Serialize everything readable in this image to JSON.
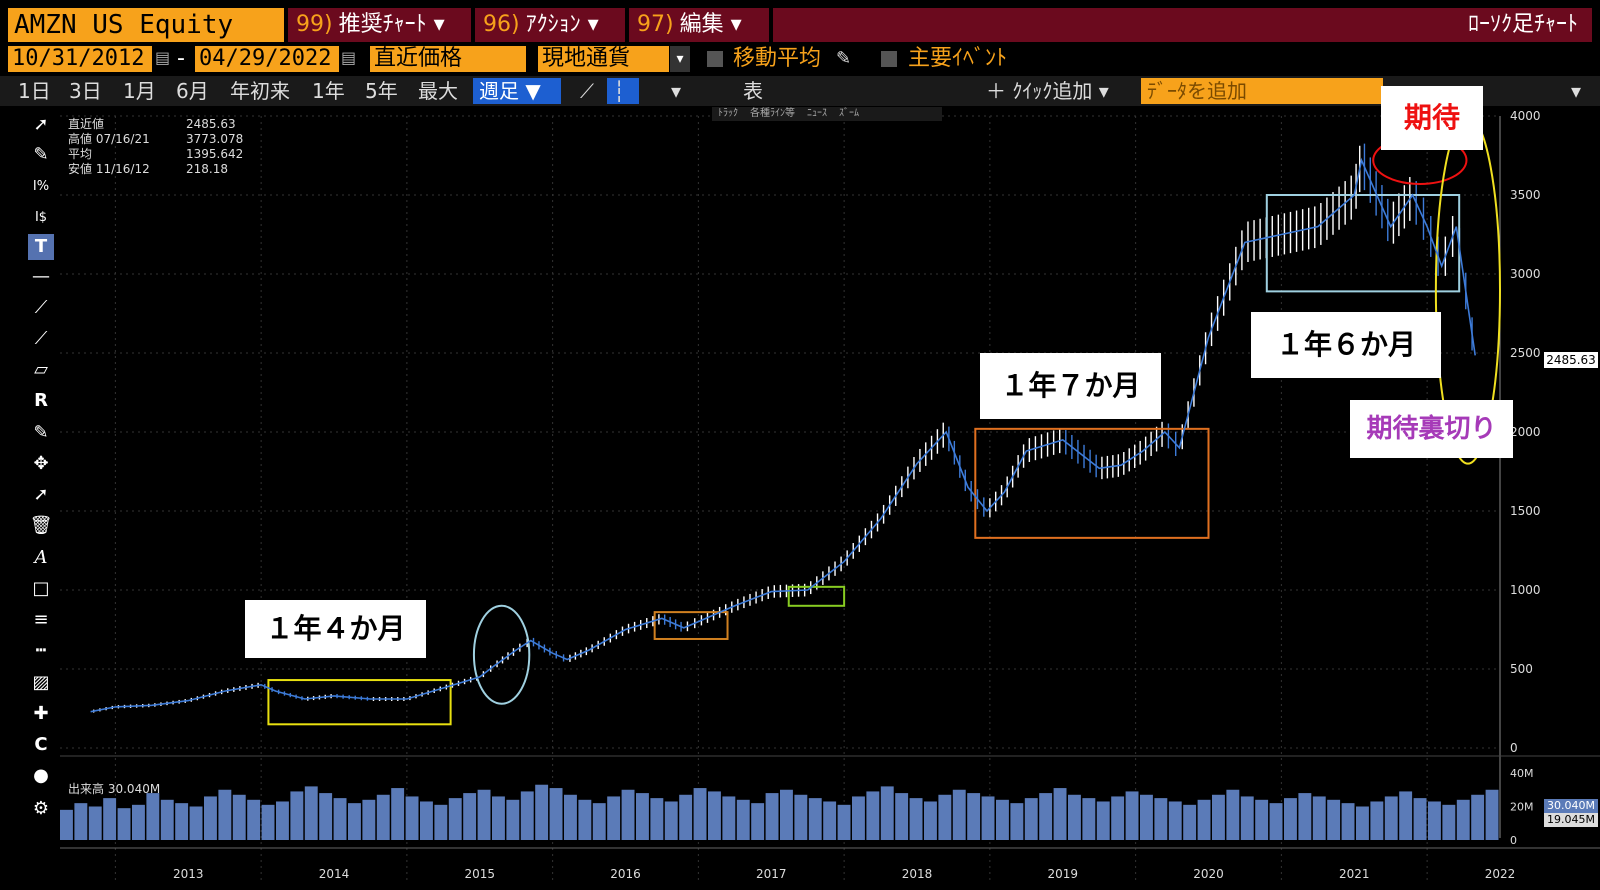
{
  "header": {
    "ticker": "AMZN US Equity",
    "menus": [
      {
        "num": "99)",
        "label": "推奨ﾁｬｰﾄ ▾"
      },
      {
        "num": "96)",
        "label": "ｱｸｼｮﾝ ▾"
      },
      {
        "num": "97)",
        "label": "編集 ▾"
      }
    ],
    "chart_type": "ﾛｰｿｸ足ﾁｬｰﾄ"
  },
  "controls": {
    "start_date": "10/31/2012",
    "date_sep": "-",
    "end_date": "04/29/2022",
    "price_type": "直近価格",
    "currency": "現地通貨",
    "moving_average": "移動平均",
    "events": "主要ｲﾍﾞﾝﾄ"
  },
  "ranges": [
    "1日",
    "3日",
    "1月",
    "6月",
    "年初来",
    "1年",
    "5年",
    "最大"
  ],
  "frequency": "週足 ▼",
  "table_label": "表",
  "quick_add": "＋ ｸｲｯｸ追加 ▾",
  "add_data_placeholder": "ﾃﾞｰﾀを追加",
  "legend": {
    "last_label": "直近値",
    "last_value": "2485.63",
    "high_label": "高値 07/16/21",
    "high_value": "3773.078",
    "avg_label": "平均",
    "avg_value": "1395.642",
    "low_label": "安値 11/16/12",
    "low_value": "218.18"
  },
  "volume_legend": {
    "label": "出来高",
    "value": "30.040M"
  },
  "mini_toolbar": [
    "ﾄﾗｯｸ",
    "各種ﾗｲﾝ等",
    "ﾆｭｰｽ",
    "ｽﾞｰﾑ"
  ],
  "last_price_tag": "2485.63",
  "volume_tags": [
    "30.040M",
    "19.045M"
  ],
  "annotations": {
    "box_2014": "１年４か月",
    "box_2018": "１年７か月",
    "box_2020": "１年６か月",
    "expect": "期待",
    "betrayal": "期待裏切り"
  },
  "colors": {
    "up": "#ffffff",
    "down": "#3d7bd8",
    "volume": "#5b7bb8",
    "accent": "#f7a21b"
  },
  "chart_data": [
    {
      "type": "line",
      "title": "",
      "xlabel": "",
      "ylabel": "",
      "x_ticks": [
        "2013",
        "2014",
        "2015",
        "2016",
        "2017",
        "2018",
        "2019",
        "2020",
        "2021",
        "2022"
      ],
      "y_ticks": [
        0,
        500,
        1000,
        1500,
        2000,
        2500,
        3000,
        3500,
        4000
      ],
      "ylim": [
        0,
        4000
      ],
      "grid": true,
      "series": [
        {
          "x": [
            2012.83,
            2013.0,
            2013.25,
            2013.5,
            2013.75,
            2014.0,
            2014.1,
            2014.3,
            2014.5,
            2014.75,
            2015.0,
            2015.25,
            2015.5,
            2015.6,
            2015.75,
            2015.85,
            2016.0,
            2016.1,
            2016.25,
            2016.5,
            2016.75,
            2016.9,
            2017.0,
            2017.25,
            2017.5,
            2017.75,
            2018.0,
            2018.25,
            2018.5,
            2018.7,
            2018.85,
            2018.98,
            2019.1,
            2019.25,
            2019.5,
            2019.75,
            2019.9,
            2020.05,
            2020.2,
            2020.3,
            2020.5,
            2020.75,
            2021.0,
            2021.25,
            2021.5,
            2021.55,
            2021.75,
            2021.9,
            2022.0,
            2022.1,
            2022.2,
            2022.33
          ],
          "y": [
            230,
            260,
            270,
            300,
            360,
            400,
            360,
            310,
            330,
            310,
            310,
            380,
            450,
            520,
            620,
            680,
            600,
            560,
            620,
            750,
            820,
            760,
            800,
            900,
            990,
            1000,
            1180,
            1450,
            1800,
            2000,
            1650,
            1500,
            1620,
            1880,
            1950,
            1770,
            1790,
            1880,
            2000,
            1900,
            2600,
            3200,
            3250,
            3300,
            3500,
            3720,
            3300,
            3500,
            3300,
            3050,
            3300,
            2485
          ]
        }
      ]
    },
    {
      "type": "bar",
      "title": "",
      "y_ticks": [
        "0",
        "20M",
        "40M"
      ],
      "ylim": [
        0,
        40
      ],
      "series": [
        {
          "name": "出来高",
          "values": [
            18,
            22,
            20,
            25,
            19,
            21,
            28,
            24,
            22,
            20,
            26,
            30,
            27,
            24,
            21,
            23,
            29,
            32,
            28,
            25,
            22,
            24,
            27,
            31,
            26,
            23,
            21,
            25,
            28,
            30,
            26,
            24,
            29,
            33,
            31,
            27,
            24,
            22,
            26,
            30,
            28,
            25,
            23,
            27,
            31,
            29,
            26,
            24,
            22,
            28,
            30,
            27,
            25,
            23,
            21,
            26,
            29,
            32,
            28,
            25,
            23,
            27,
            30,
            28,
            26,
            24,
            22,
            25,
            28,
            31,
            27,
            25,
            23,
            26,
            29,
            27,
            25,
            23,
            21,
            24,
            27,
            30,
            26,
            24,
            22,
            25,
            28,
            26,
            24,
            22,
            20,
            23,
            26,
            29,
            25,
            23,
            21,
            24,
            27,
            30
          ]
        }
      ]
    }
  ]
}
